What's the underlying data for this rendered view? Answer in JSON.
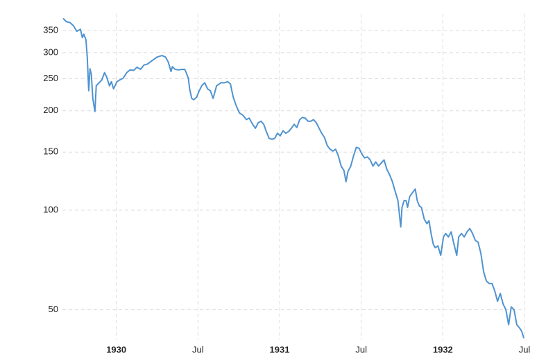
{
  "chart_data": {
    "type": "line",
    "log_scale": true,
    "grid": true,
    "x": [
      1929.674,
      1929.695,
      1929.716,
      1929.737,
      1929.758,
      1929.78,
      1929.792,
      1929.801,
      1929.814,
      1929.822,
      1929.831,
      1929.839,
      1929.847,
      1929.856,
      1929.869,
      1929.877,
      1929.894,
      1929.911,
      1929.928,
      1929.941,
      1929.958,
      1929.97,
      1929.983,
      1930.004,
      1930.021,
      1930.042,
      1930.064,
      1930.085,
      1930.106,
      1930.127,
      1930.148,
      1930.169,
      1930.191,
      1930.216,
      1930.25,
      1930.28,
      1930.301,
      1930.318,
      1930.335,
      1930.343,
      1930.36,
      1930.381,
      1930.403,
      1930.419,
      1930.428,
      1930.441,
      1930.449,
      1930.462,
      1930.475,
      1930.492,
      1930.508,
      1930.525,
      1930.542,
      1930.559,
      1930.576,
      1930.593,
      1930.614,
      1930.64,
      1930.661,
      1930.682,
      1930.699,
      1930.716,
      1930.733,
      1930.754,
      1930.775,
      1930.797,
      1930.814,
      1930.835,
      1930.852,
      1930.869,
      1930.886,
      1930.903,
      1930.919,
      1930.936,
      1930.953,
      1930.97,
      1930.987,
      1931.004,
      1931.021,
      1931.038,
      1931.055,
      1931.072,
      1931.089,
      1931.106,
      1931.123,
      1931.14,
      1931.157,
      1931.174,
      1931.191,
      1931.208,
      1931.225,
      1931.242,
      1931.258,
      1931.275,
      1931.292,
      1931.309,
      1931.326,
      1931.343,
      1931.36,
      1931.377,
      1931.394,
      1931.407,
      1931.419,
      1931.436,
      1931.453,
      1931.47,
      1931.487,
      1931.504,
      1931.521,
      1931.538,
      1931.555,
      1931.572,
      1931.589,
      1931.606,
      1931.623,
      1931.64,
      1931.657,
      1931.674,
      1931.691,
      1931.708,
      1931.725,
      1931.742,
      1931.75,
      1931.763,
      1931.775,
      1931.784,
      1931.797,
      1931.814,
      1931.831,
      1931.843,
      1931.856,
      1931.869,
      1931.886,
      1931.903,
      1931.915,
      1931.928,
      1931.941,
      1931.953,
      1931.97,
      1931.987,
      1932.004,
      1932.017,
      1932.034,
      1932.051,
      1932.068,
      1932.085,
      1932.097,
      1932.114,
      1932.131,
      1932.148,
      1932.165,
      1932.182,
      1932.199,
      1932.216,
      1932.233,
      1932.25,
      1932.267,
      1932.284,
      1932.301,
      1932.318,
      1932.335,
      1932.352,
      1932.369,
      1932.386,
      1932.403,
      1932.419,
      1932.436,
      1932.453,
      1932.47,
      1932.483,
      1932.496
    ],
    "series": [
      {
        "color": "#4f93d0",
        "values": [
          381,
          372,
          370,
          362,
          348,
          353,
          333,
          341,
          328,
          291,
          230,
          268,
          258,
          218,
          199,
          238,
          243,
          248,
          261,
          253,
          238,
          245,
          233,
          245,
          248,
          251,
          261,
          266,
          265,
          271,
          267,
          275,
          277,
          283,
          291,
          294,
          291,
          281,
          263,
          272,
          267,
          266,
          267,
          267,
          261,
          251,
          233,
          218,
          216,
          220,
          230,
          239,
          243,
          233,
          230,
          218,
          238,
          243,
          243,
          245,
          241,
          220,
          208,
          197,
          194,
          188,
          190,
          182,
          177,
          184,
          186,
          182,
          173,
          165,
          164,
          165,
          171,
          168,
          174,
          171,
          173,
          177,
          182,
          178,
          188,
          191,
          190,
          186,
          186,
          188,
          184,
          177,
          171,
          166,
          157,
          153,
          151,
          153,
          146,
          136,
          132,
          122,
          131,
          136,
          146,
          155,
          154,
          148,
          144,
          145,
          142,
          136,
          140,
          136,
          139,
          142,
          133,
          128,
          122,
          114,
          107,
          89,
          102,
          107,
          107,
          102,
          110,
          113,
          116,
          107,
          103,
          102,
          94,
          91,
          93,
          85,
          79,
          77,
          78,
          73,
          83,
          85,
          83,
          86,
          79,
          73,
          83,
          85,
          83,
          86,
          88,
          85,
          81,
          80,
          74,
          65,
          61,
          60,
          60,
          57,
          53,
          56,
          52,
          50,
          45,
          51,
          50,
          45,
          44,
          43,
          41
        ]
      }
    ],
    "xlim": [
      1929.67,
      1932.5
    ],
    "xticks": [
      {
        "value": 1930,
        "label": "1930"
      },
      {
        "value": 1930.5,
        "label": "Jul"
      },
      {
        "value": 1931,
        "label": "1931"
      },
      {
        "value": 1931.5,
        "label": "Jul"
      },
      {
        "value": 1932,
        "label": "1932"
      },
      {
        "value": 1932.5,
        "label": "Jul"
      }
    ],
    "ylim": [
      40.5,
      393
    ],
    "yticks": [
      50,
      100,
      150,
      200,
      250,
      300,
      350
    ]
  }
}
